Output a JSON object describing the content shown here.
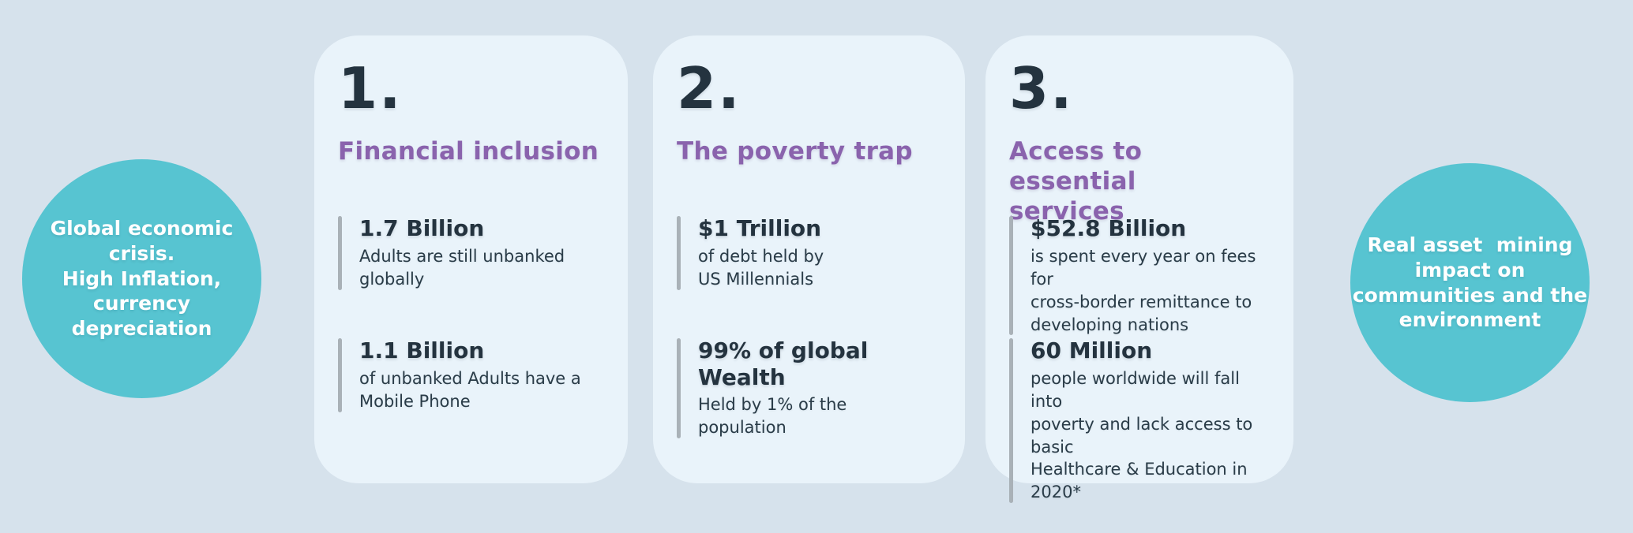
{
  "theme": {
    "background": "#d6e2ec",
    "card_background": "#e9f3fa",
    "circle_background": "#57c4d1",
    "accent_purple": "#8a63ad",
    "text_dark": "#24333f",
    "stat_bar_gray": "#a9b1b7",
    "circle_text_white": "#ffffff"
  },
  "left_circle": {
    "text": "Global economic\ncrisis.\nHigh Inflation,\ncurrency\ndepreciation"
  },
  "right_circle": {
    "text": "Real asset  mining\nimpact on\ncommunities and the\nenvironment"
  },
  "cards": [
    {
      "number": "1.",
      "title": "Financial inclusion",
      "stats": [
        {
          "value": "1.7 Billion",
          "description": "Adults are still unbanked\nglobally"
        },
        {
          "value": "1.1 Billion",
          "description": "of unbanked Adults have a\nMobile Phone"
        }
      ]
    },
    {
      "number": "2.",
      "title": "The poverty trap",
      "stats": [
        {
          "value": "$1 Trillion",
          "description": "of debt held by\nUS Millennials"
        },
        {
          "value": "99% of global Wealth",
          "description": "Held by 1% of the\npopulation"
        }
      ]
    },
    {
      "number": "3.",
      "title": "Access to essential\nservices",
      "stats": [
        {
          "value": "$52.8 Billion",
          "description": "is spent every year on fees for\ncross-border remittance to\ndeveloping nations"
        },
        {
          "value": "60 Million",
          "description": "people worldwide will fall into\npoverty and lack access to basic\nHealthcare & Education in 2020*"
        }
      ]
    }
  ]
}
